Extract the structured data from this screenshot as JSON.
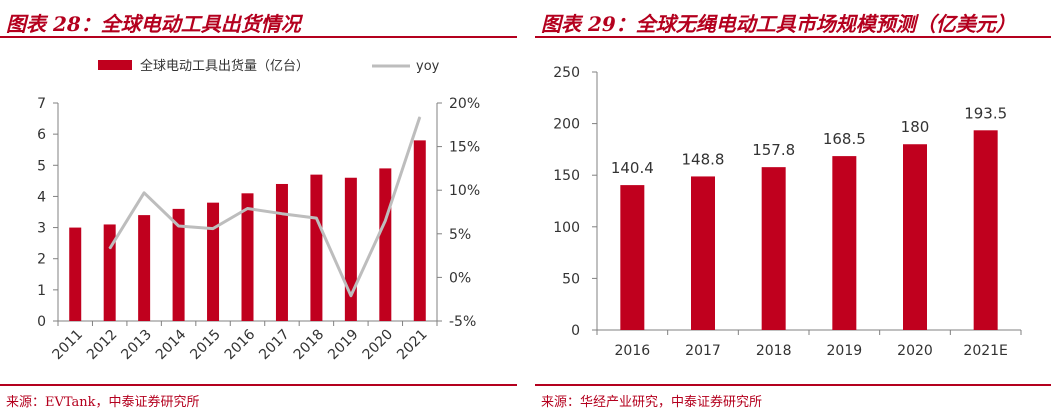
{
  "colors": {
    "brand": "#b4001e",
    "bar": "#c0001e",
    "line": "#bdbdbd",
    "axis": "#808080",
    "text": "#333333"
  },
  "left": {
    "figure_title": "图表 28：全球电动工具出货情况",
    "source": "来源：EVTank，中泰证券研究所"
  },
  "right": {
    "figure_title": "图表 29：全球无绳电动工具市场规模预测（亿美元）",
    "source": "来源：华经产业研究，中泰证券研究所"
  },
  "chart_data": [
    {
      "type": "bar",
      "title": "",
      "categories": [
        "2011",
        "2012",
        "2013",
        "2014",
        "2015",
        "2016",
        "2017",
        "2018",
        "2019",
        "2020",
        "2021"
      ],
      "series": [
        {
          "name": "全球电动工具出货量（亿台）",
          "type": "bar",
          "axis": "left",
          "values": [
            3.0,
            3.1,
            3.4,
            3.6,
            3.8,
            4.1,
            4.4,
            4.7,
            4.6,
            4.9,
            5.8
          ]
        },
        {
          "name": "yoy",
          "type": "line",
          "axis": "right",
          "values": [
            null,
            3.3,
            9.7,
            5.9,
            5.6,
            7.9,
            7.3,
            6.8,
            -2.1,
            6.5,
            18.4
          ]
        }
      ],
      "ylim": [
        0,
        7
      ],
      "yticks": [
        "0",
        "1",
        "2",
        "3",
        "4",
        "5",
        "6",
        "7"
      ],
      "y2lim": [
        -5,
        20
      ],
      "y2ticks": [
        "-5%",
        "0%",
        "5%",
        "10%",
        "15%",
        "20%"
      ],
      "legend_position": "top",
      "grid": false,
      "xtick_rotation": -45
    },
    {
      "type": "bar",
      "title": "",
      "categories": [
        "2016",
        "2017",
        "2018",
        "2019",
        "2020",
        "2021E"
      ],
      "values": [
        140.4,
        148.8,
        157.8,
        168.5,
        180,
        193.5
      ],
      "value_labels": [
        "140.4",
        "148.8",
        "157.8",
        "168.5",
        "180",
        "193.5"
      ],
      "ylim": [
        0,
        250
      ],
      "yticks": [
        "0",
        "50",
        "100",
        "150",
        "200",
        "250"
      ],
      "grid": false
    }
  ]
}
